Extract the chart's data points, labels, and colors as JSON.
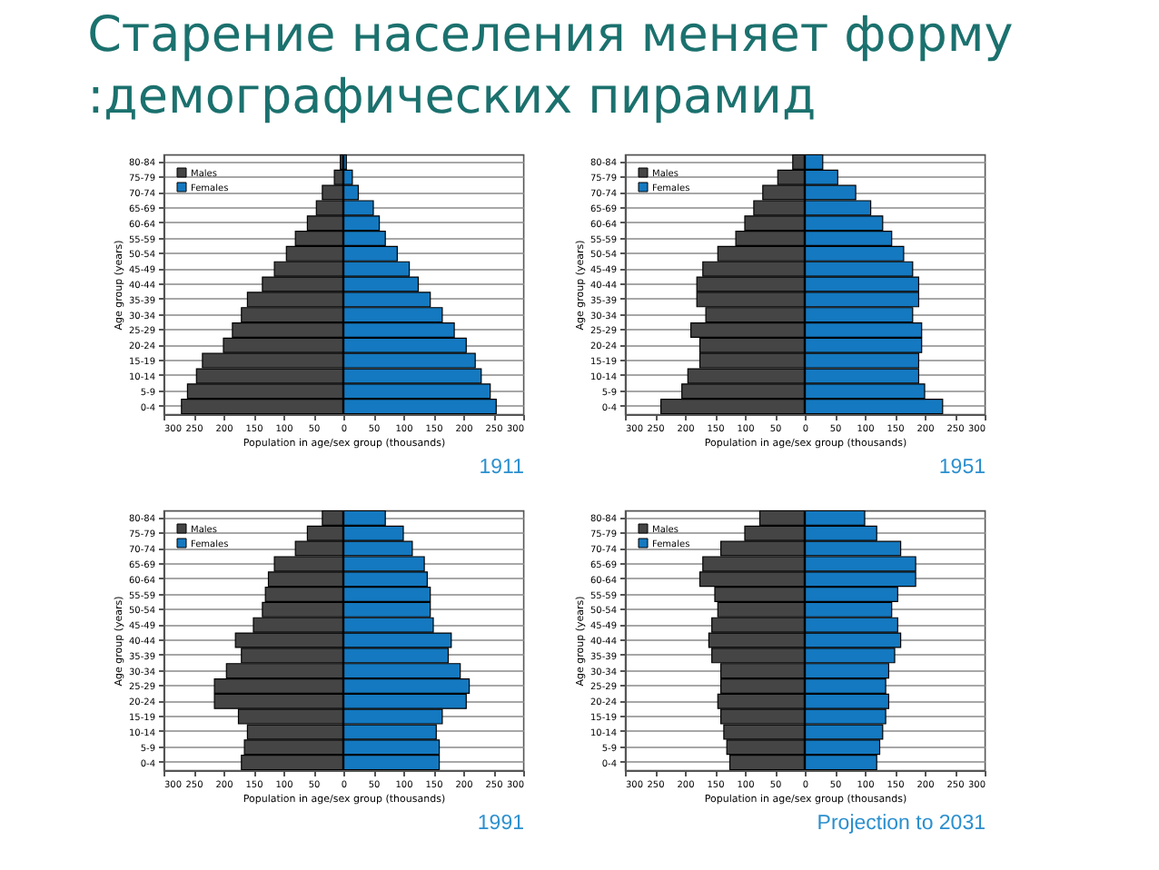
{
  "chart_data": [
    {
      "type": "bar",
      "orientation": "horizontal",
      "stacked": true,
      "title": "Старение населения меняет форму\n:демографических пирамид",
      "annotations": [
        "1911"
      ],
      "xlabel": "Population in age/sex group (thousands)",
      "ylabel": "Age group (years)",
      "categories": [
        "80-84",
        "75-79",
        "70-74",
        "65-69",
        "60-64",
        "55-59",
        "50-54",
        "45-49",
        "40-44",
        "35-39",
        "30-34",
        "25-29",
        "20-24",
        "15-19",
        "10-14",
        "5-9",
        "0-4"
      ],
      "series": [
        {
          "name": "Males",
          "color": "#454545",
          "values": [
            -5,
            -15,
            -35,
            -45,
            -60,
            -80,
            -95,
            -115,
            -135,
            -160,
            -170,
            -185,
            -200,
            -235,
            -245,
            -260,
            -270
          ]
        },
        {
          "name": "Females",
          "color": "#1479c0",
          "values": [
            5,
            15,
            25,
            50,
            60,
            70,
            90,
            110,
            125,
            145,
            165,
            185,
            205,
            220,
            230,
            245,
            255
          ]
        }
      ],
      "xlim": [
        -300,
        300
      ],
      "xticks": [
        {
          "value": -300,
          "label": "300"
        },
        {
          "value": -250,
          "label": "250"
        },
        {
          "value": -200,
          "label": "200"
        },
        {
          "value": -150,
          "label": "150"
        },
        {
          "value": -100,
          "label": "100"
        },
        {
          "value": -50,
          "label": "50"
        },
        0,
        50,
        100,
        150,
        200,
        250,
        300
      ],
      "ref_lines": [
        {
          "axis": "x",
          "value": 0,
          "color": "#000000"
        }
      ],
      "grid": "y",
      "legend": "top left"
    },
    {
      "type": "bar",
      "orientation": "horizontal",
      "stacked": true,
      "annotations": [
        "1951"
      ],
      "xlabel": "Population in age/sex group (thousands)",
      "ylabel": "Age group (years)",
      "categories": [
        "80-84",
        "75-79",
        "70-74",
        "65-69",
        "60-64",
        "55-59",
        "50-54",
        "45-49",
        "40-44",
        "35-39",
        "30-34",
        "25-29",
        "20-24",
        "15-19",
        "10-14",
        "5-9",
        "0-4"
      ],
      "series": [
        {
          "name": "Males",
          "color": "#454545",
          "values": [
            -20,
            -45,
            -70,
            -85,
            -100,
            -115,
            -145,
            -170,
            -180,
            -180,
            -165,
            -190,
            -175,
            -175,
            -195,
            -205,
            -240
          ]
        },
        {
          "name": "Females",
          "color": "#1479c0",
          "values": [
            30,
            55,
            85,
            110,
            130,
            145,
            165,
            180,
            190,
            190,
            180,
            195,
            195,
            190,
            190,
            200,
            230
          ]
        }
      ],
      "xlim": [
        -300,
        300
      ],
      "xticks": [
        {
          "value": -300,
          "label": "300"
        },
        {
          "value": -250,
          "label": "250"
        },
        {
          "value": -200,
          "label": "200"
        },
        {
          "value": -150,
          "label": "150"
        },
        {
          "value": -100,
          "label": "100"
        },
        {
          "value": -50,
          "label": "50"
        },
        0,
        50,
        100,
        150,
        200,
        250,
        300
      ],
      "ref_lines": [
        {
          "axis": "x",
          "value": 0,
          "color": "#000000"
        }
      ],
      "grid": "y",
      "legend": "top left"
    },
    {
      "type": "bar",
      "orientation": "horizontal",
      "stacked": true,
      "annotations": [
        "1991"
      ],
      "xlabel": "Population in age/sex group (thousands)",
      "ylabel": "Age group (years)",
      "categories": [
        "80-84",
        "75-79",
        "70-74",
        "65-69",
        "60-64",
        "55-59",
        "50-54",
        "45-49",
        "40-44",
        "35-39",
        "30-34",
        "25-29",
        "20-24",
        "15-19",
        "10-14",
        "5-9",
        "0-4"
      ],
      "series": [
        {
          "name": "Males",
          "color": "#454545",
          "values": [
            -35,
            -60,
            -80,
            -115,
            -125,
            -130,
            -135,
            -150,
            -180,
            -170,
            -195,
            -215,
            -215,
            -175,
            -160,
            -165,
            -170
          ]
        },
        {
          "name": "Females",
          "color": "#1479c0",
          "values": [
            70,
            100,
            115,
            135,
            140,
            145,
            145,
            150,
            180,
            175,
            195,
            210,
            205,
            165,
            155,
            160,
            160
          ]
        }
      ],
      "xlim": [
        -300,
        300
      ],
      "xticks": [
        {
          "value": -300,
          "label": "300"
        },
        {
          "value": -250,
          "label": "250"
        },
        {
          "value": -200,
          "label": "200"
        },
        {
          "value": -150,
          "label": "150"
        },
        {
          "value": -100,
          "label": "100"
        },
        {
          "value": -50,
          "label": "50"
        },
        0,
        50,
        100,
        150,
        200,
        250,
        300
      ],
      "ref_lines": [
        {
          "axis": "x",
          "value": 0,
          "color": "#000000"
        }
      ],
      "grid": "y",
      "legend": "top left"
    },
    {
      "type": "bar",
      "orientation": "horizontal",
      "stacked": true,
      "annotations": [
        "Projection to 2031"
      ],
      "xlabel": "Population in age/sex group (thousands)",
      "ylabel": "Age group (years)",
      "categories": [
        "80-84",
        "75-79",
        "70-74",
        "65-69",
        "60-64",
        "55-59",
        "50-54",
        "45-49",
        "40-44",
        "35-39",
        "30-34",
        "25-29",
        "20-24",
        "15-19",
        "10-14",
        "5-9",
        "0-4"
      ],
      "series": [
        {
          "name": "Males",
          "color": "#454545",
          "values": [
            -75,
            -100,
            -140,
            -170,
            -175,
            -150,
            -145,
            -155,
            -160,
            -155,
            -140,
            -140,
            -145,
            -140,
            -135,
            -130,
            -125
          ]
        },
        {
          "name": "Females",
          "color": "#1479c0",
          "values": [
            100,
            120,
            160,
            185,
            185,
            155,
            145,
            155,
            160,
            150,
            140,
            135,
            140,
            135,
            130,
            125,
            120
          ]
        }
      ],
      "xlim": [
        -300,
        300
      ],
      "xticks": [
        {
          "value": -300,
          "label": "300"
        },
        {
          "value": -250,
          "label": "250"
        },
        {
          "value": -200,
          "label": "200"
        },
        {
          "value": -150,
          "label": "150"
        },
        {
          "value": -100,
          "label": "100"
        },
        {
          "value": -50,
          "label": "50"
        },
        0,
        50,
        100,
        150,
        200,
        250,
        300
      ],
      "ref_lines": [
        {
          "axis": "x",
          "value": 0,
          "color": "#000000"
        }
      ],
      "grid": "y",
      "legend": "top left"
    }
  ]
}
